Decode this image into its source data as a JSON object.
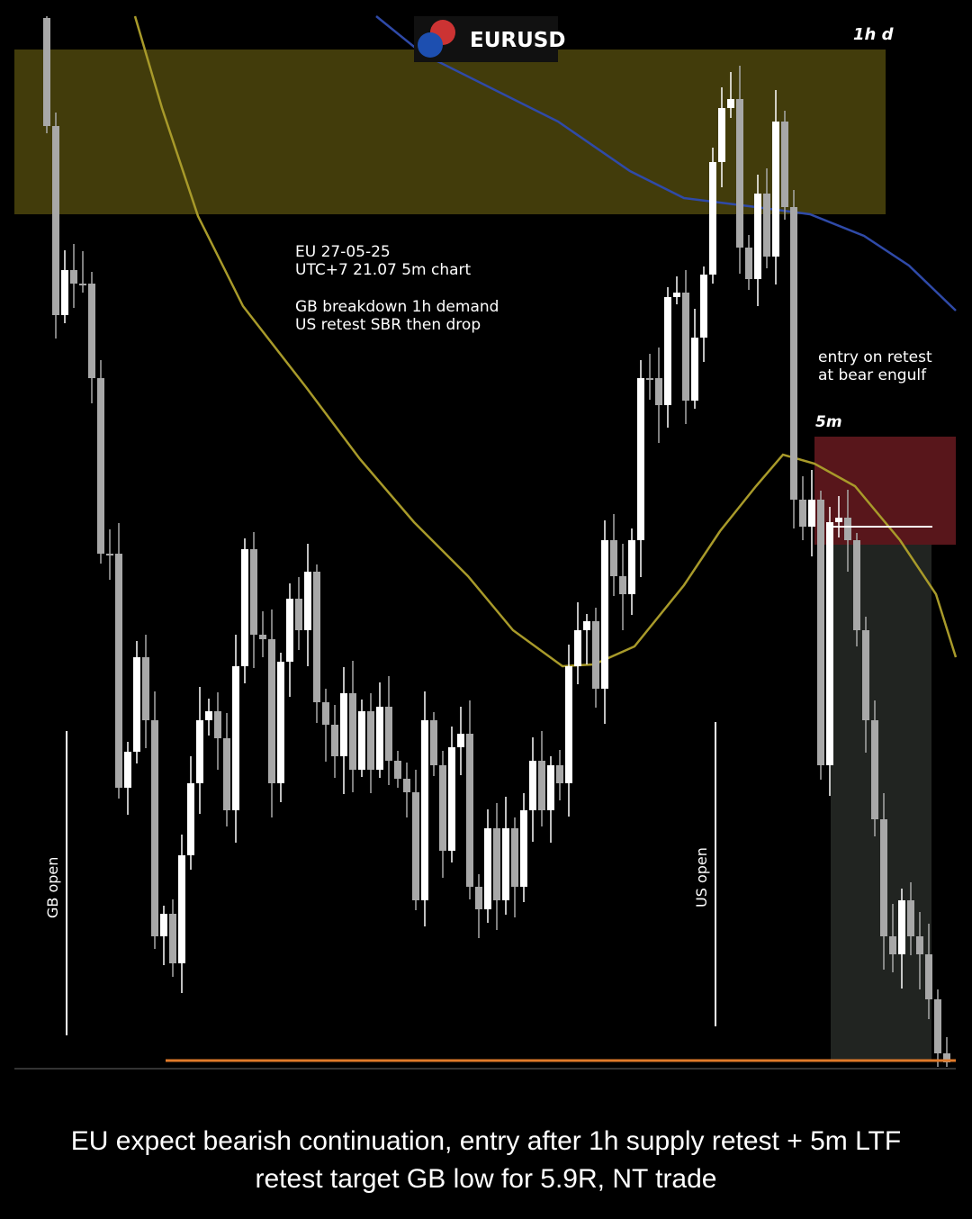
{
  "header": {
    "symbol": "EURUSD",
    "timeframe": "1h d"
  },
  "notes": {
    "info": [
      "EU 27-05-25",
      "UTC+7 21.07 5m chart"
    ],
    "analysis": [
      "GB breakdown 1h demand",
      "US retest SBR then drop"
    ],
    "entry": [
      "entry on retest",
      "at bear engulf"
    ],
    "ltf": "5m"
  },
  "sessions": [
    "GB open",
    "US open"
  ],
  "caption": [
    "EU expect bearish continuation, entry after 1h supply retest + 5m LTF",
    "retest target GB low for 5.9R, NT trade"
  ]
}
